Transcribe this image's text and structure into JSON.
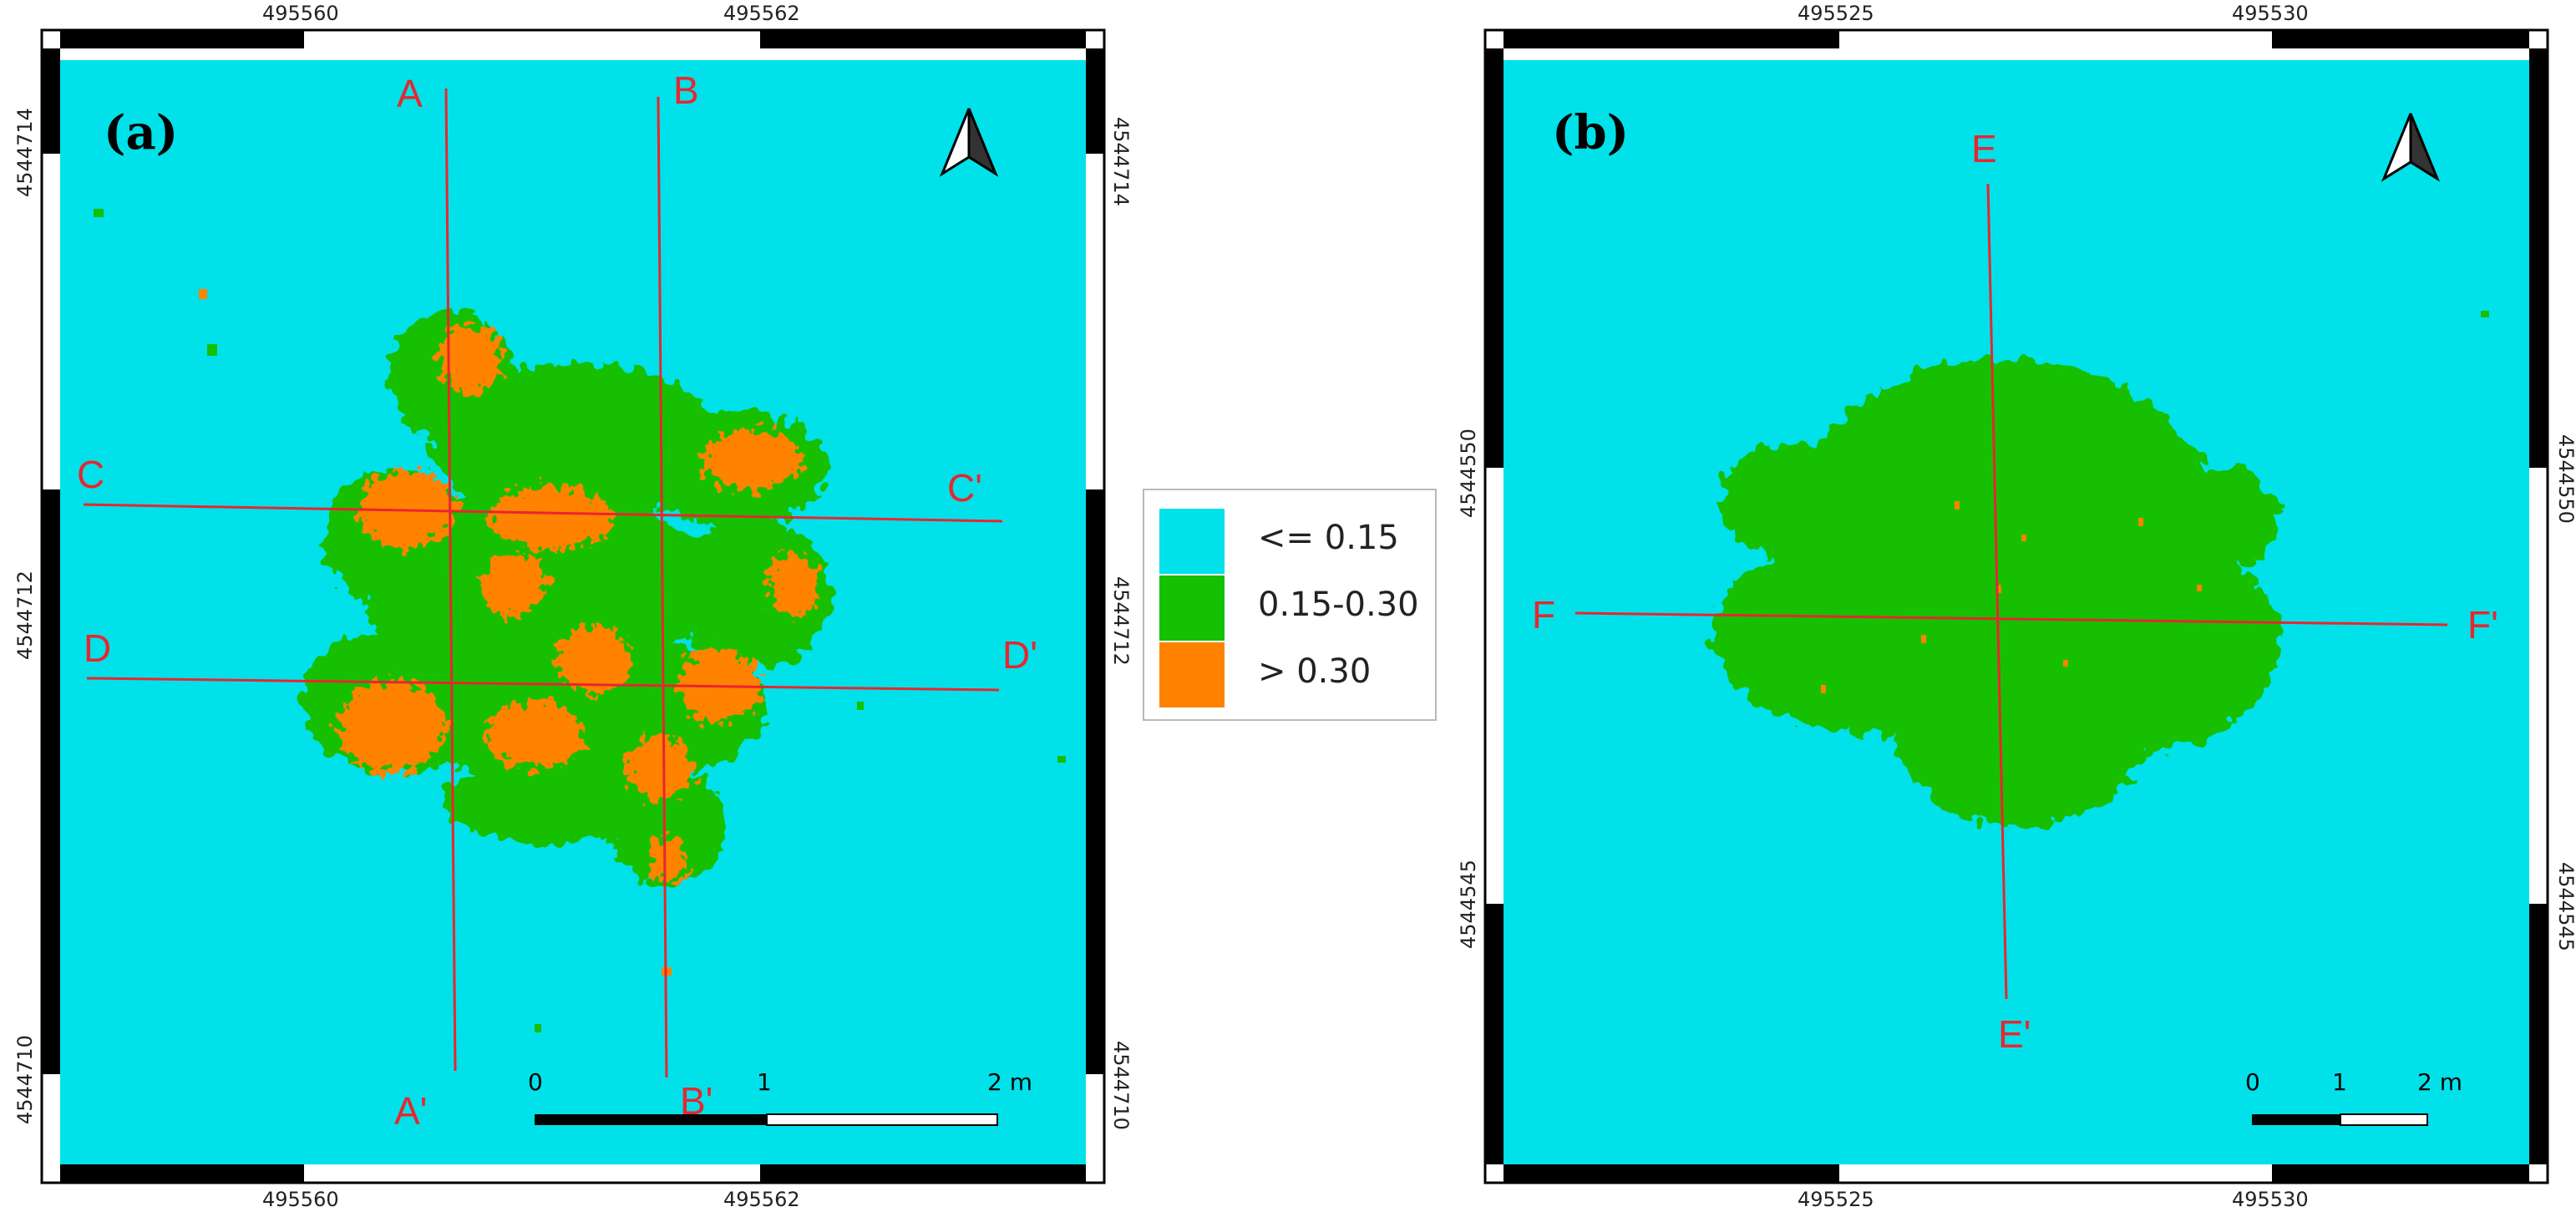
{
  "colors": {
    "low": "#00e1e9",
    "mid": "#14c000",
    "high": "#ff8200",
    "section_line": "#e8262f",
    "frame": "#000000"
  },
  "panels": [
    {
      "id": "a",
      "label": "(a)",
      "x_ticks": [
        "495560",
        "495562"
      ],
      "y_ticks": [
        "4544714",
        "4544712",
        "4544710"
      ],
      "scale_bar": {
        "labels": [
          "0",
          "1",
          "2 m"
        ]
      },
      "north_arrow": "north-arrow-icon",
      "sections": [
        {
          "start": "A",
          "end": "A'"
        },
        {
          "start": "B",
          "end": "B'"
        },
        {
          "start": "C",
          "end": "C'"
        },
        {
          "start": "D",
          "end": "D'"
        }
      ]
    },
    {
      "id": "b",
      "label": "(b)",
      "x_ticks": [
        "495525",
        "495530"
      ],
      "y_ticks": [
        "4544550",
        "4544545"
      ],
      "scale_bar": {
        "labels": [
          "0",
          "1",
          "2 m"
        ]
      },
      "north_arrow": "north-arrow-icon",
      "sections": [
        {
          "start": "E",
          "end": "E'"
        },
        {
          "start": "F",
          "end": "F'"
        }
      ]
    }
  ],
  "legend": [
    {
      "label": "<= 0.15",
      "color": "#00e1e9"
    },
    {
      "label": "0.15-0.30",
      "color": "#14c000"
    },
    {
      "label": "> 0.30",
      "color": "#ff8200"
    }
  ]
}
